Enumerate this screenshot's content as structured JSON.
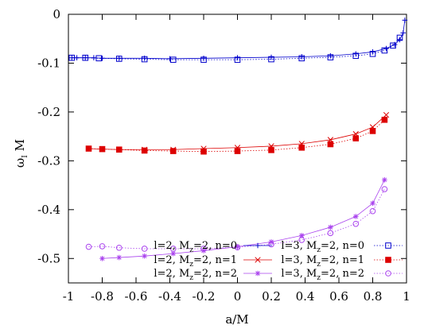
{
  "chart_data": {
    "type": "line",
    "xlabel": "a/M",
    "ylabel": "ω",
    "ylabel_sub": "I",
    "ylabel_suffix": " M",
    "xlim": [
      -1,
      1
    ],
    "ylim": [
      -0.55,
      0
    ],
    "x_ticks": [
      -1,
      -0.8,
      -0.6,
      -0.4,
      -0.2,
      0,
      0.2,
      0.4,
      0.6,
      0.8,
      1
    ],
    "x_tick_labels": [
      "-1",
      "-0.8",
      "-0.6",
      "-0.4",
      "-0.2",
      "0",
      "0.2",
      "0.4",
      "0.6",
      "0.8",
      "1"
    ],
    "y_ticks": [
      0,
      -0.1,
      -0.2,
      -0.3,
      -0.4,
      -0.5
    ],
    "y_tick_labels": [
      "0",
      "-0.1",
      "-0.2",
      "-0.3",
      "-0.4",
      "-0.5"
    ],
    "grid": false,
    "legend_position": "bottom",
    "series": [
      {
        "name_parts": [
          "l=2, M",
          "z",
          "=2, n=0"
        ],
        "color": "#0000cc",
        "marker": "plus",
        "line": "solid",
        "x": [
          -0.98,
          -0.95,
          -0.9,
          -0.85,
          -0.8,
          -0.7,
          -0.55,
          -0.4,
          -0.2,
          0,
          0.2,
          0.38,
          0.55,
          0.7,
          0.8,
          0.88,
          0.93,
          0.96,
          0.98,
          0.99
        ],
        "y": [
          -0.089,
          -0.089,
          -0.089,
          -0.089,
          -0.09,
          -0.09,
          -0.09,
          -0.091,
          -0.09,
          -0.089,
          -0.088,
          -0.087,
          -0.085,
          -0.081,
          -0.077,
          -0.07,
          -0.062,
          -0.052,
          -0.038,
          -0.012
        ]
      },
      {
        "name_parts": [
          "l=3, M",
          "z",
          "=2, n=0"
        ],
        "color": "#0000cc",
        "marker": "open-square",
        "line": "dotted",
        "x": [
          -0.98,
          -0.9,
          -0.82,
          -0.7,
          -0.55,
          -0.38,
          -0.2,
          0,
          0.2,
          0.38,
          0.55,
          0.7,
          0.8,
          0.87,
          0.92,
          0.96
        ],
        "y": [
          -0.089,
          -0.089,
          -0.09,
          -0.091,
          -0.092,
          -0.093,
          -0.093,
          -0.093,
          -0.092,
          -0.09,
          -0.088,
          -0.085,
          -0.081,
          -0.074,
          -0.064,
          -0.048
        ]
      },
      {
        "name_parts": [
          "l=2, M",
          "z",
          "=2, n=1"
        ],
        "color": "#dd0000",
        "marker": "cross",
        "line": "solid",
        "x": [
          -0.88,
          -0.8,
          -0.7,
          -0.55,
          -0.38,
          -0.2,
          0,
          0.2,
          0.38,
          0.55,
          0.7,
          0.8,
          0.88
        ],
        "y": [
          -0.275,
          -0.276,
          -0.277,
          -0.277,
          -0.277,
          -0.275,
          -0.273,
          -0.27,
          -0.265,
          -0.257,
          -0.245,
          -0.231,
          -0.206
        ]
      },
      {
        "name_parts": [
          "l=3, M",
          "z",
          "=2, n=1"
        ],
        "color": "#dd0000",
        "marker": "filled-square",
        "line": "dotted",
        "x": [
          -0.88,
          -0.8,
          -0.7,
          -0.55,
          -0.38,
          -0.2,
          0,
          0.2,
          0.38,
          0.55,
          0.7,
          0.8,
          0.87
        ],
        "y": [
          -0.275,
          -0.276,
          -0.277,
          -0.279,
          -0.28,
          -0.281,
          -0.28,
          -0.278,
          -0.273,
          -0.266,
          -0.254,
          -0.239,
          -0.216
        ]
      },
      {
        "name_parts": [
          "l=2, M",
          "z",
          "=2, n=2"
        ],
        "color": "#aa44ee",
        "marker": "star",
        "line": "solid",
        "x": [
          -0.8,
          -0.7,
          -0.55,
          -0.38,
          -0.2,
          0,
          0.2,
          0.38,
          0.55,
          0.7,
          0.8,
          0.87
        ],
        "y": [
          -0.5,
          -0.498,
          -0.495,
          -0.49,
          -0.484,
          -0.476,
          -0.466,
          -0.453,
          -0.436,
          -0.414,
          -0.387,
          -0.339
        ]
      },
      {
        "name_parts": [
          "l=3, M",
          "z",
          "=2, n=2"
        ],
        "color": "#aa44ee",
        "marker": "open-circle",
        "line": "dotted",
        "x": [
          -0.88,
          -0.8,
          -0.7,
          -0.55,
          -0.38,
          -0.2,
          0,
          0.2,
          0.38,
          0.55,
          0.7,
          0.8,
          0.87
        ],
        "y": [
          -0.476,
          -0.475,
          -0.478,
          -0.48,
          -0.48,
          -0.48,
          -0.477,
          -0.471,
          -0.462,
          -0.448,
          -0.429,
          -0.403,
          -0.358
        ]
      }
    ]
  }
}
